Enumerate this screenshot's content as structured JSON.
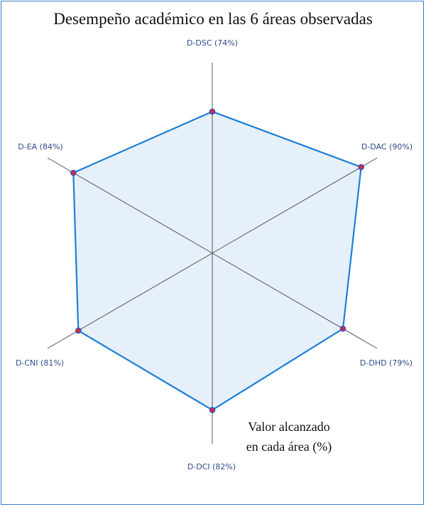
{
  "chart_data": {
    "type": "radar",
    "title": "Desempeño académico en las 6 áreas observadas",
    "note_lines": [
      "Valor alcanzado",
      "en cada área (%)"
    ],
    "series": [
      {
        "values": [
          74,
          90,
          79,
          82,
          81,
          84
        ]
      }
    ],
    "categories": [
      "D-DSC",
      "D-DAC",
      "D-DHD",
      "D-DCI",
      "D-CNI",
      "D-EA"
    ],
    "labels": [
      "D-DSC (74%)",
      "D-DAC (90%)",
      "D-DHD (79%)",
      "D-DCI (82%)",
      "D-CNI (81%)",
      "D-EA (84%)"
    ],
    "range": [
      0,
      100
    ],
    "colors": {
      "line": "#1e7fd6",
      "fill": "#e6f0fa",
      "marker_fill": "#e0243a",
      "marker_stroke": "#2a56c8",
      "axis": "#555555",
      "label": "#2f4a86",
      "border": "#3b78c3"
    }
  }
}
